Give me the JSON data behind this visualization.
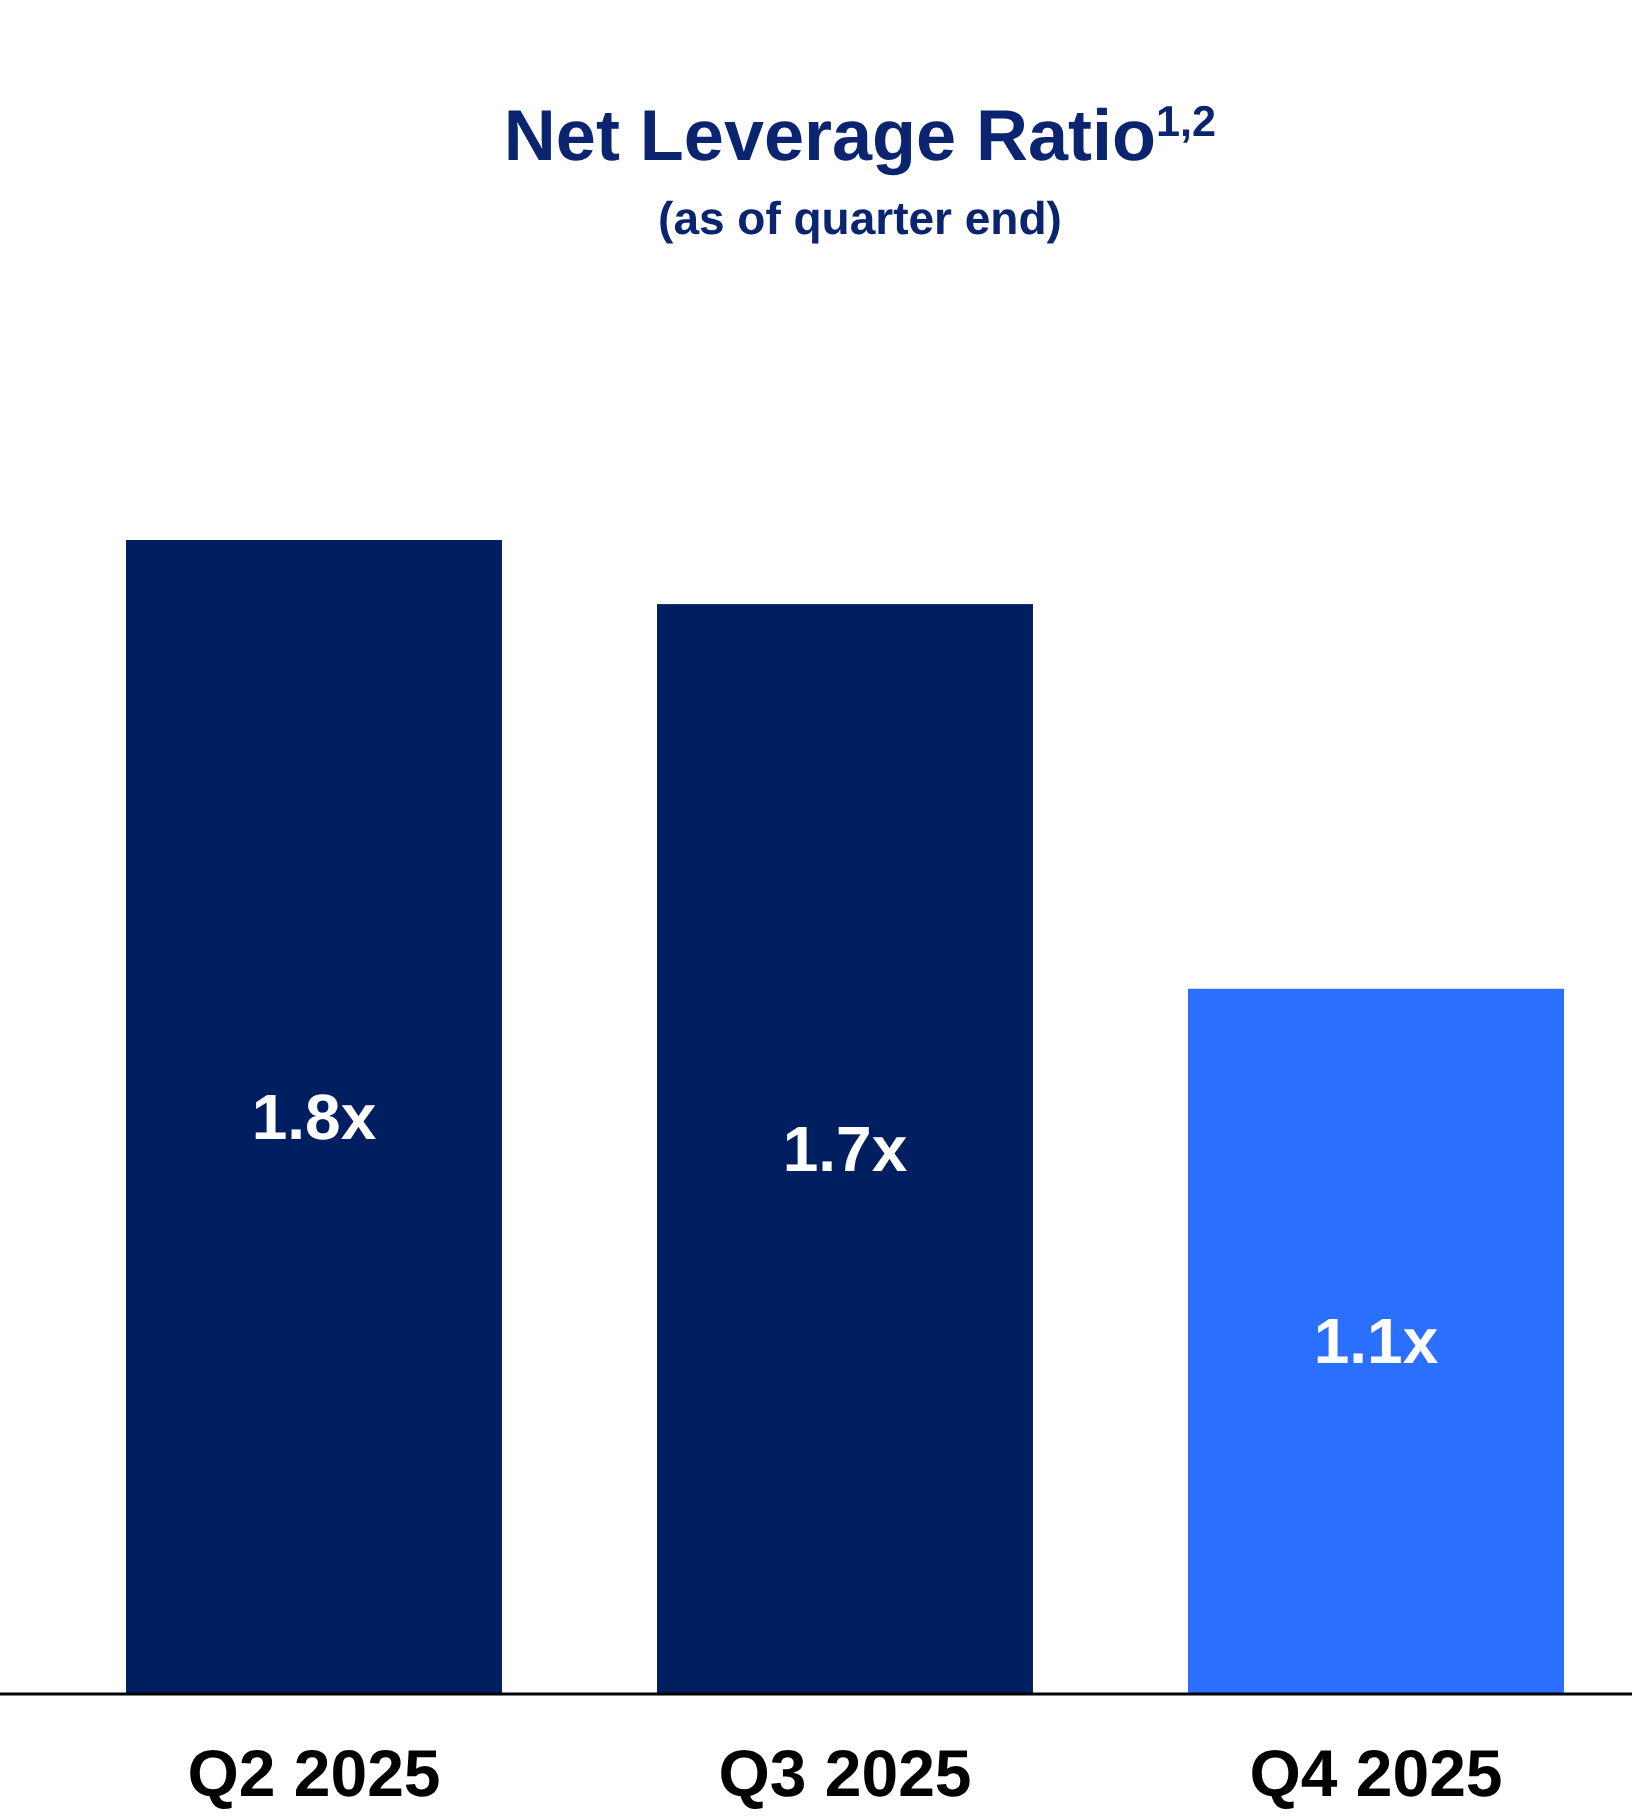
{
  "chart_data": {
    "type": "bar",
    "title": "Net Leverage Ratio$^{1,2}$",
    "subtitle": "(as of quarter end)",
    "categories": [
      "Q2 2025",
      "Q3 2025",
      "Q4 2025"
    ],
    "values": [
      1.8,
      1.7,
      1.1
    ],
    "colors": [
      "#001f60",
      "#001f60",
      "#2b6fff"
    ],
    "value_labels": [
      "1.8x",
      "1.7x",
      "1.1x"
    ]
  }
}
